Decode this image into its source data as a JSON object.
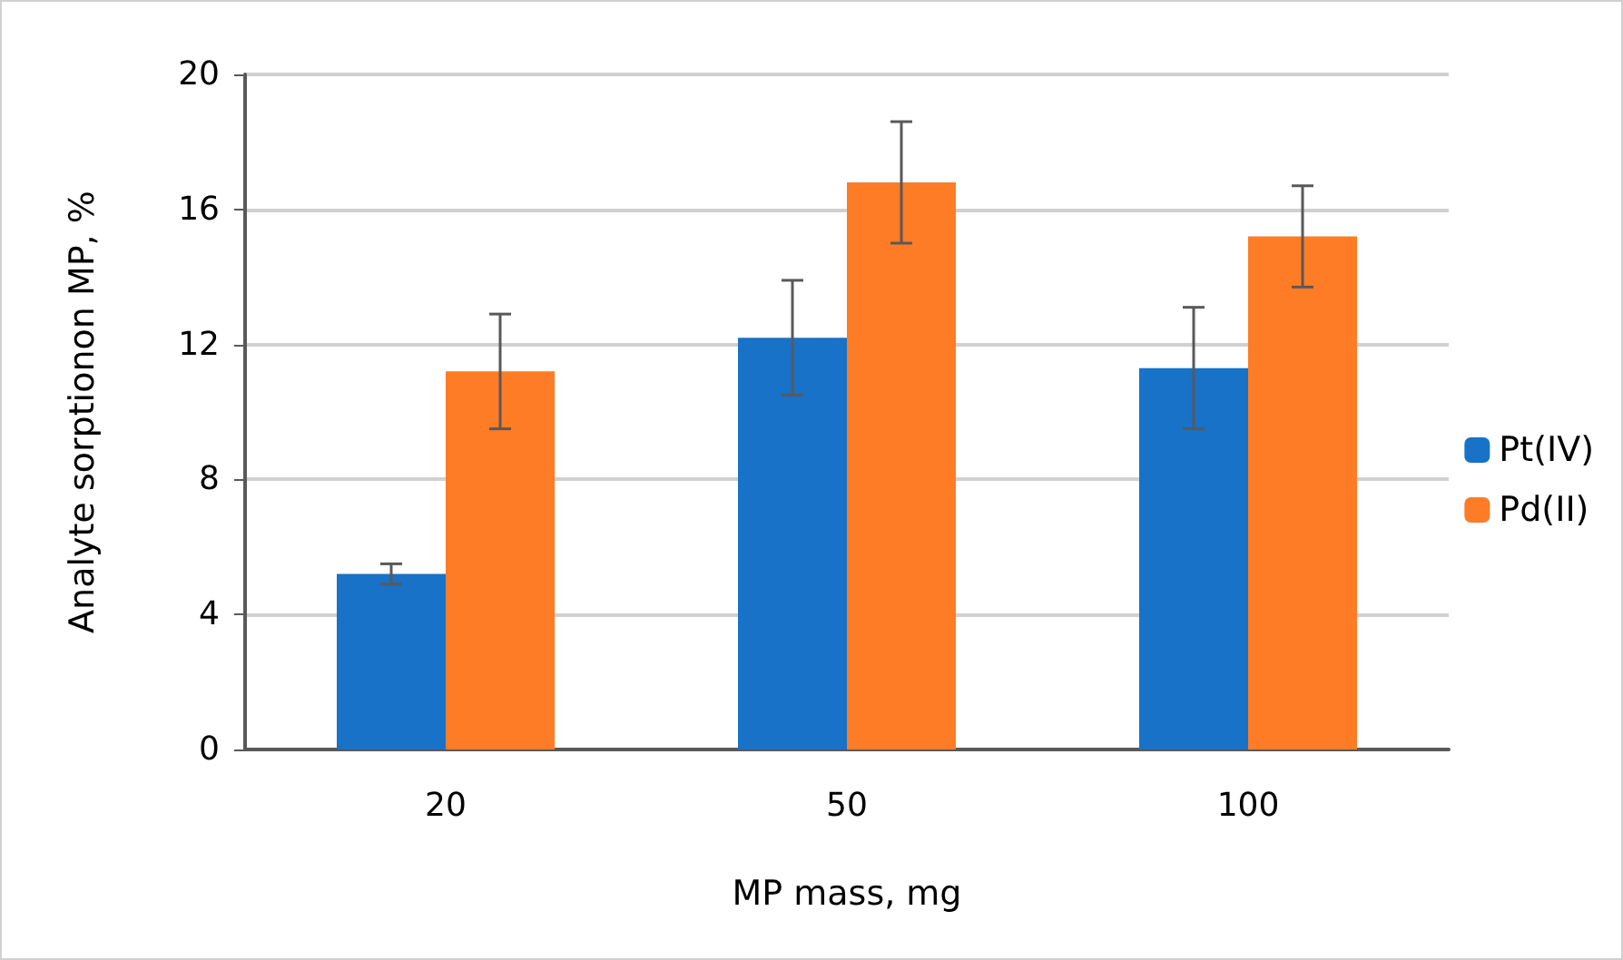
{
  "chart_data": {
    "type": "bar",
    "xlabel": "MP mass, mg",
    "ylabel": "Analyte sorptionon MP, %",
    "categories": [
      "20",
      "50",
      "100"
    ],
    "series": [
      {
        "name": "Pt(IV)",
        "color": "#1772c8",
        "values": [
          5.2,
          12.2,
          11.3
        ],
        "errors": [
          0.3,
          1.7,
          1.8
        ]
      },
      {
        "name": "Pd(II)",
        "color": "#fe7c25",
        "values": [
          11.2,
          16.8,
          15.2
        ],
        "errors": [
          1.7,
          1.8,
          1.5
        ]
      }
    ],
    "ylim": [
      0,
      20
    ],
    "yticks": [
      0,
      4,
      8,
      12,
      16,
      20
    ],
    "grid": "y",
    "legend": "right"
  }
}
